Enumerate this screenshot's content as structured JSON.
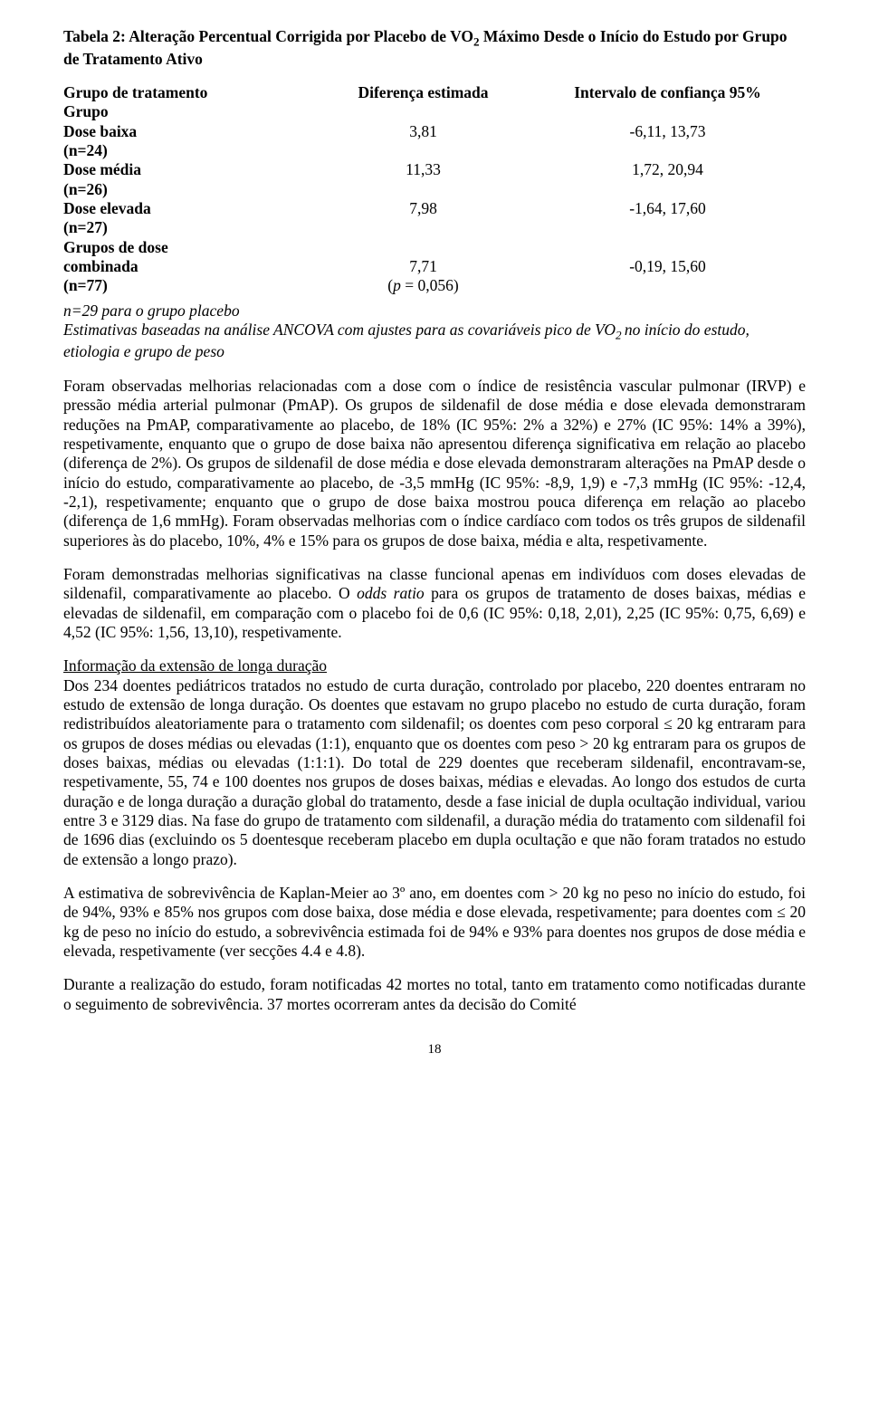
{
  "title_prefix": "Tabela 2: Alteração Percentual Corrigida por Placebo de VO",
  "title_sub": "2",
  "title_suffix": " Máximo Desde o Início do Estudo por Grupo de Tratamento Ativo",
  "table": {
    "h1": "Grupo de tratamento",
    "h2": "Diferença estimada",
    "h3": "Intervalo de confiança 95%",
    "grupo": "Grupo",
    "r1a": "Dose baixa",
    "r1b": "3,81",
    "r1c": "-6,11, 13,73",
    "r1s": "(n=24)",
    "r2a": "Dose média",
    "r2b": "11,33",
    "r2c": "1,72, 20,94",
    "r2s": "(n=26)",
    "r3a": "Dose elevada",
    "r3b": "7,98",
    "r3c": "-1,64, 17,60",
    "r3s": "(n=27)",
    "r4a": "Grupos de dose",
    "r5a": "combinada",
    "r5b": "7,71",
    "r5c": "-0,19, 15,60",
    "r6a": " (n=77)",
    "r6b_i": "p",
    "r6b_rest": " = 0,056)"
  },
  "est_line1": "n=29 para o grupo placebo",
  "est_line2_pre": "Estimativas baseadas na análise ANCOVA com ajustes para as covariáveis pico de VO",
  "est_line2_sub": "2 ",
  "est_line2_post": "no início do estudo, etiologia e grupo de peso",
  "p1": "Foram observadas melhorias relacionadas com a dose com o índice de resistência vascular pulmonar (IRVP) e pressão média arterial pulmonar (PmAP). Os grupos de sildenafil de dose média e dose elevada demonstraram reduções na PmAP, comparativamente ao placebo, de 18% (IC 95%: 2% a 32%) e 27% (IC 95%: 14% a 39%), respetivamente, enquanto que o grupo de dose baixa não apresentou diferença significativa em relação ao placebo (diferença de 2%). Os grupos de sildenafil de dose média e dose elevada demonstraram alterações na PmAP desde o início do estudo, comparativamente ao placebo, de -3,5 mmHg (IC 95%: -8,9, 1,9) e -7,3 mmHg (IC 95%: -12,4, -2,1), respetivamente; enquanto que o grupo de dose baixa mostrou pouca diferença em relação ao placebo (diferença de 1,6 mmHg). Foram observadas melhorias com o índice cardíaco com todos os três grupos de sildenafil superiores às do placebo, 10%, 4% e 15% para os grupos de dose baixa, média e alta, respetivamente.",
  "p2_pre": "Foram demonstradas melhorias significativas na classe funcional apenas em indivíduos com doses elevadas de sildenafil, comparativamente ao placebo. O ",
  "p2_i": "odds ratio",
  "p2_post": " para os grupos de tratamento de doses baixas, médias e elevadas de sildenafil, em comparação com o placebo foi de 0,6 (IC 95%: 0,18, 2,01), 2,25 (IC 95%: 0,75, 6,69) e 4,52 (IC 95%: 1,56, 13,10), respetivamente.",
  "p3_h": "Informação da extensão de longa duração",
  "p3": "Dos 234 doentes pediátricos tratados no estudo de curta duração, controlado por placebo, 220 doentes entraram no estudo de extensão de longa duração. Os doentes que estavam no grupo placebo no estudo de curta duração, foram redistribuídos aleatoriamente para o tratamento com sildenafil; os doentes com peso corporal ≤ 20 kg entraram para os grupos de doses médias ou elevadas (1:1), enquanto que os doentes com peso > 20 kg entraram para os grupos de doses baixas, médias ou elevadas (1:1:1). Do total de 229 doentes que receberam sildenafil, encontravam-se, respetivamente, 55, 74 e 100 doentes nos grupos de doses baixas, médias e elevadas. Ao longo dos estudos de curta duração e de longa duração a duração global do tratamento, desde a fase inicial de dupla ocultação individual, variou entre 3 e 3129 dias. Na fase do grupo de tratamento com sildenafil, a duração média do tratamento com sildenafil foi de 1696 dias (excluindo os 5 doentesque receberam placebo em dupla ocultação e que não foram tratados no estudo de extensão a longo prazo).",
  "p4": "A estimativa de sobrevivência de Kaplan-Meier ao 3º ano, em doentes com > 20 kg no peso no início do estudo, foi de 94%, 93% e 85% nos grupos com dose baixa, dose média e dose elevada, respetivamente; para doentes com ≤ 20 kg de peso no início do estudo, a sobrevivência estimada foi de 94% e 93% para doentes nos grupos de dose média e elevada, respetivamente (ver secções 4.4 e 4.8).",
  "p5": "Durante a realização do estudo, foram notificadas 42 mortes no total, tanto em tratamento como notificadas durante o seguimento de sobrevivência. 37 mortes ocorreram antes da decisão do Comité",
  "page_num": "18"
}
